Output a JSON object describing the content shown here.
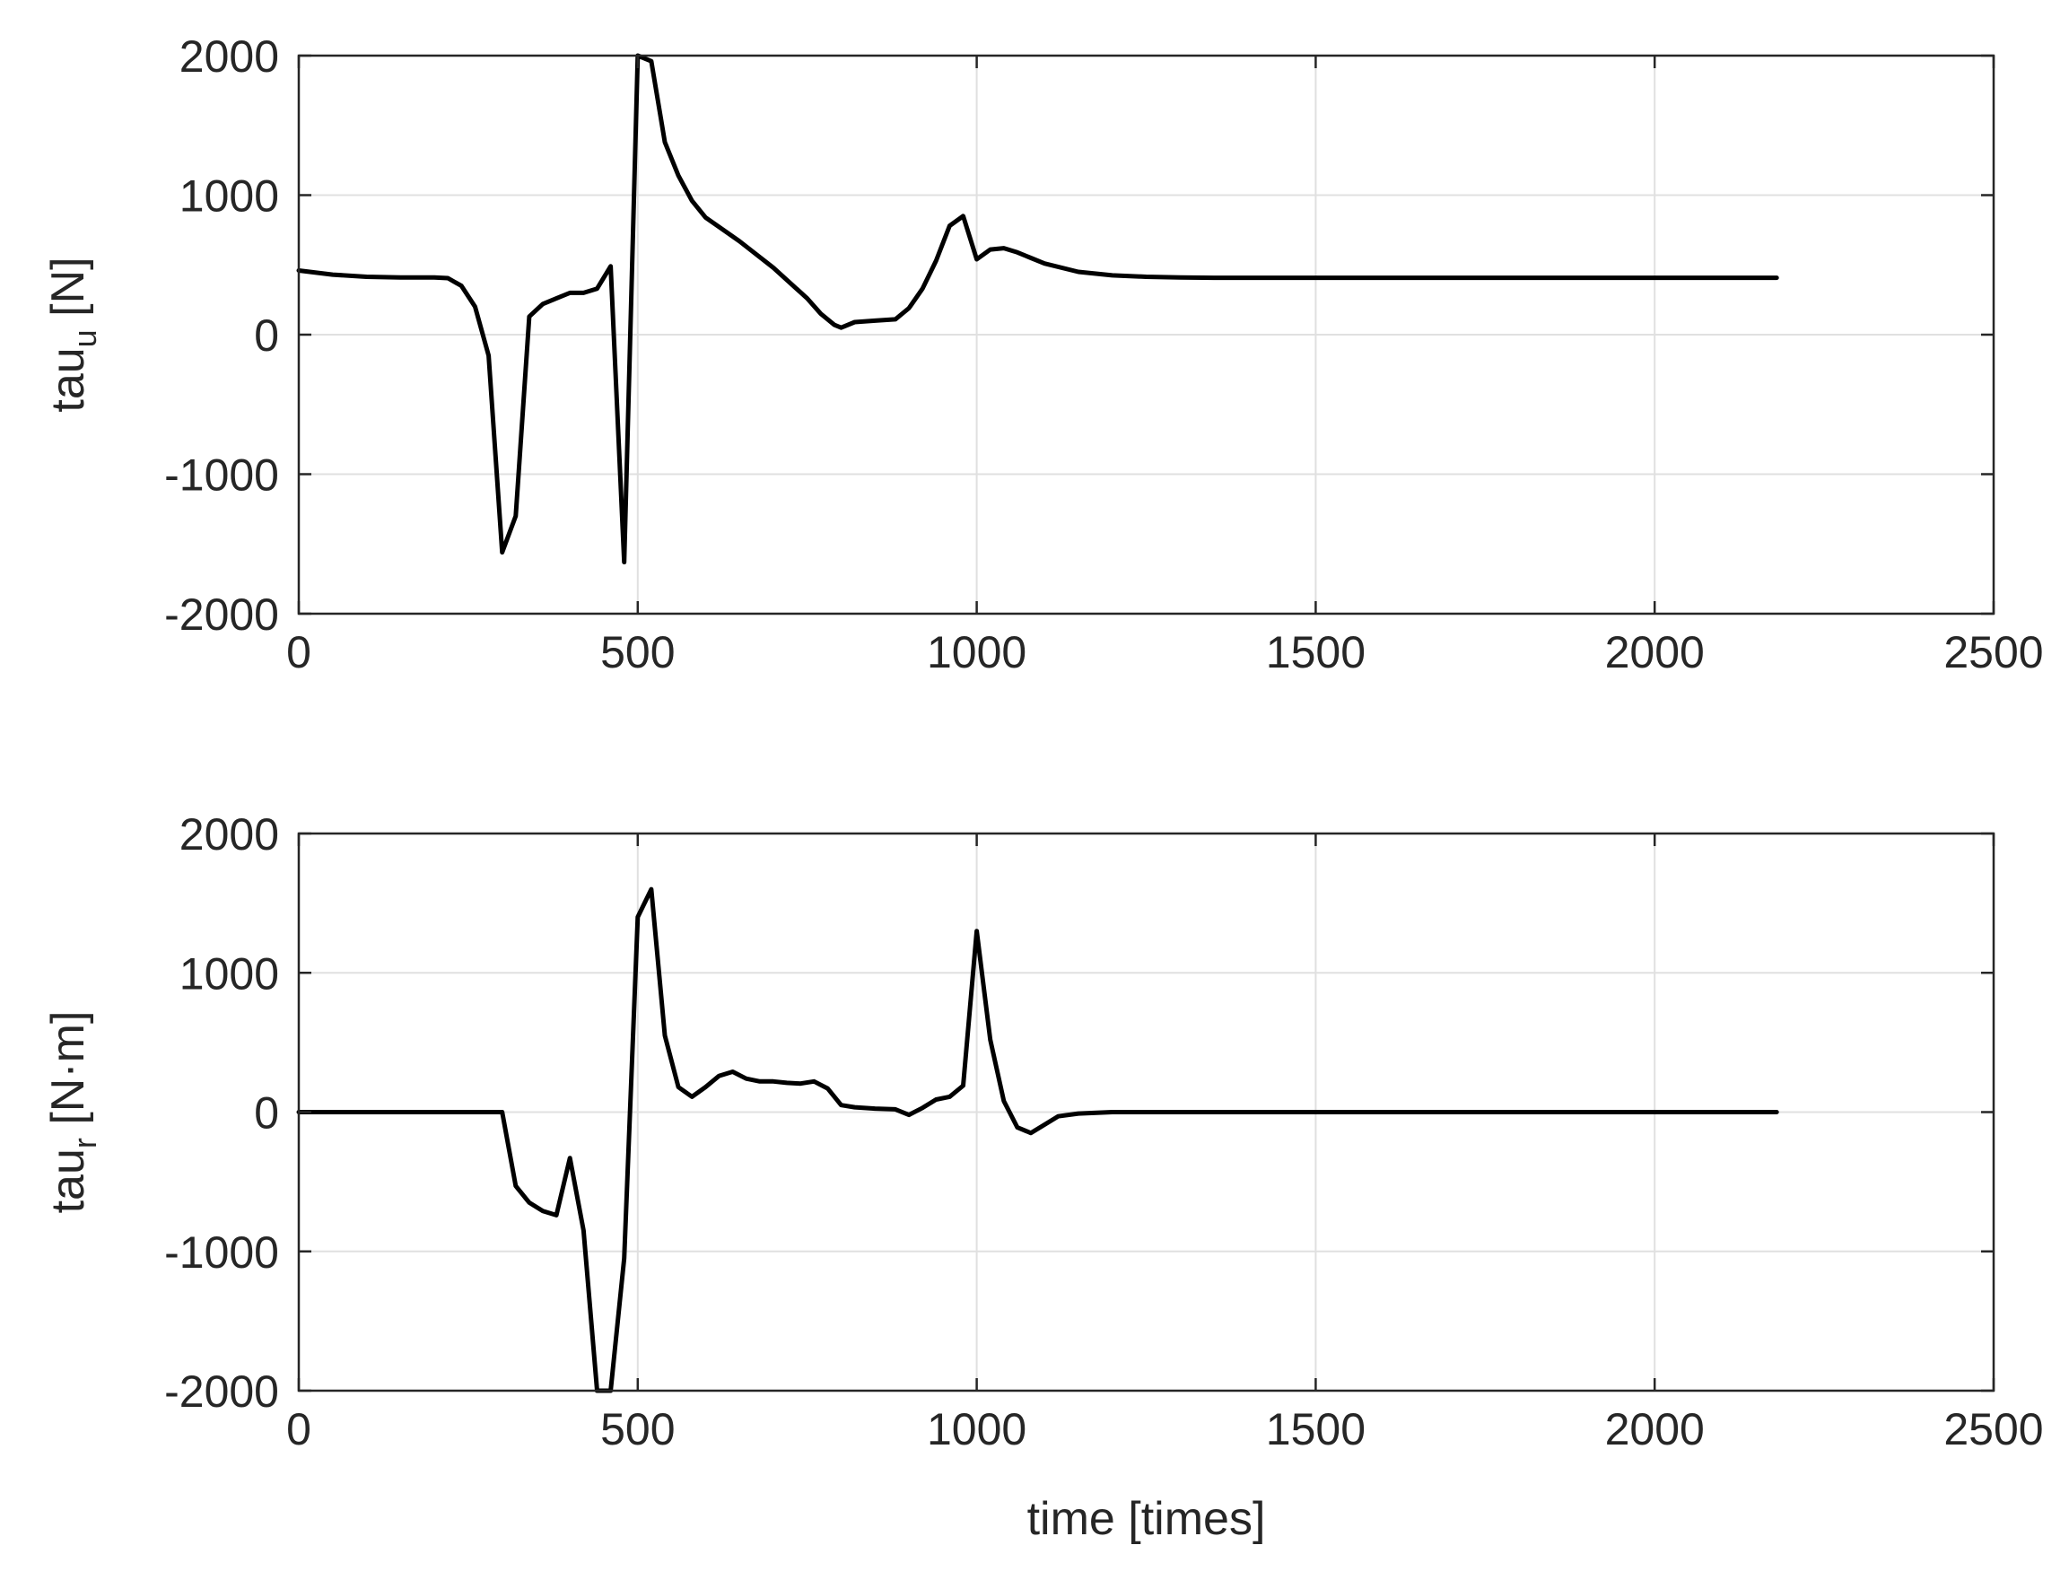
{
  "colors": {
    "line": "#000000",
    "axes": "#262626",
    "grid": "#e0e0e0",
    "background": "#ffffff"
  },
  "chart_data": [
    {
      "type": "line",
      "title": "",
      "xlabel": "",
      "ylabel": {
        "main": "tau",
        "subscript": "u",
        "unit": " [N]"
      },
      "xlim": [
        0,
        2500
      ],
      "ylim": [
        -2000,
        2000
      ],
      "xticks": [
        0,
        500,
        1000,
        1500,
        2000,
        2500
      ],
      "yticks": [
        -2000,
        -1000,
        0,
        1000,
        2000
      ],
      "grid": true,
      "series": [
        {
          "x": [
            0,
            50,
            100,
            150,
            200,
            220,
            240,
            260,
            280,
            300,
            320,
            340,
            360,
            380,
            400,
            420,
            440,
            460,
            480,
            500,
            520,
            540,
            560,
            580,
            600,
            650,
            700,
            750,
            770,
            790,
            800,
            820,
            850,
            880,
            900,
            920,
            940,
            960,
            980,
            1000,
            1020,
            1040,
            1060,
            1080,
            1100,
            1150,
            1200,
            1250,
            1300,
            1350,
            1400,
            1500,
            1600,
            1700,
            1800,
            1900,
            2000,
            2100,
            2180
          ],
          "y": [
            460,
            430,
            415,
            410,
            410,
            405,
            350,
            200,
            -150,
            -1560,
            -1300,
            130,
            220,
            260,
            300,
            300,
            330,
            490,
            -1630,
            2000,
            1960,
            1380,
            1140,
            960,
            840,
            670,
            480,
            260,
            150,
            70,
            50,
            90,
            100,
            110,
            190,
            330,
            530,
            780,
            850,
            540,
            610,
            620,
            590,
            550,
            510,
            450,
            425,
            415,
            410,
            408,
            408,
            408,
            408,
            408,
            408,
            408,
            408,
            408,
            408
          ]
        }
      ]
    },
    {
      "type": "line",
      "title": "",
      "xlabel": "time [times]",
      "ylabel": {
        "main": "tau",
        "subscript": "r",
        "unit": " [N·m]"
      },
      "xlim": [
        0,
        2500
      ],
      "ylim": [
        -2000,
        2000
      ],
      "xticks": [
        0,
        500,
        1000,
        1500,
        2000,
        2500
      ],
      "yticks": [
        -2000,
        -1000,
        0,
        1000,
        2000
      ],
      "grid": true,
      "series": [
        {
          "x": [
            0,
            100,
            200,
            300,
            320,
            340,
            360,
            380,
            400,
            420,
            440,
            460,
            480,
            500,
            520,
            540,
            560,
            580,
            600,
            620,
            640,
            660,
            680,
            700,
            720,
            740,
            760,
            780,
            800,
            820,
            850,
            880,
            900,
            920,
            940,
            960,
            980,
            1000,
            1020,
            1040,
            1060,
            1080,
            1100,
            1120,
            1150,
            1200,
            1300,
            1500,
            1700,
            1900,
            2100,
            2180
          ],
          "y": [
            0,
            0,
            0,
            0,
            -530,
            -650,
            -710,
            -740,
            -330,
            -850,
            -2000,
            -2000,
            -1050,
            1400,
            1600,
            550,
            180,
            110,
            180,
            260,
            290,
            240,
            220,
            220,
            210,
            205,
            220,
            170,
            50,
            35,
            25,
            20,
            -20,
            30,
            90,
            110,
            190,
            1300,
            520,
            80,
            -110,
            -150,
            -90,
            -30,
            -10,
            0,
            0,
            0,
            0,
            0,
            0,
            0
          ]
        }
      ]
    }
  ]
}
